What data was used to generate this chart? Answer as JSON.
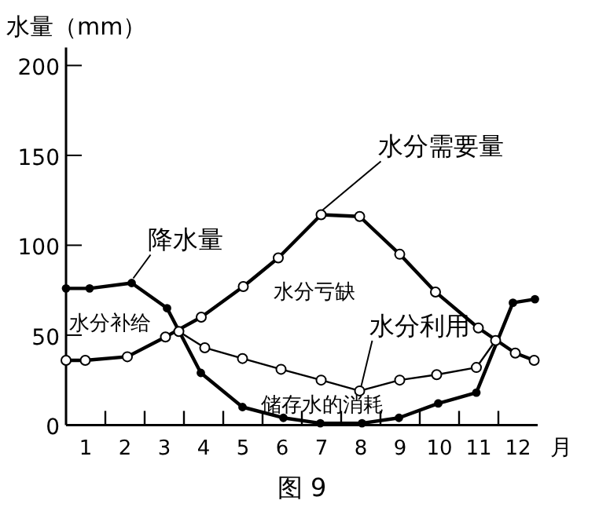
{
  "chart_data": {
    "type": "line",
    "ylabel": "水量（mm）",
    "xlabel": "月",
    "xlim": [
      0.5,
      12.5
    ],
    "ylim": [
      0,
      210
    ],
    "yticks": [
      0,
      50,
      100,
      150,
      200
    ],
    "xticks": [
      1,
      {
        "value": 1.5,
        "label": null
      },
      2,
      {
        "value": 2.5,
        "label": null
      },
      3,
      {
        "value": 3.5,
        "label": null
      },
      4,
      {
        "value": 4.5,
        "label": null
      },
      5,
      {
        "value": 5.5,
        "label": null
      },
      6,
      {
        "value": 6.5,
        "label": null
      },
      7,
      {
        "value": 7.5,
        "label": null
      },
      8,
      {
        "value": 8.5,
        "label": null
      },
      9,
      {
        "value": 9.5,
        "label": null
      },
      10,
      {
        "value": 10.5,
        "label": null
      },
      11,
      {
        "value": 11.5,
        "label": null
      },
      12
    ],
    "marker": "circle",
    "line_style": "solid",
    "series": [
      {
        "name": "降水量",
        "color": "#000000",
        "x": [
          0.5,
          1.1,
          2.17,
          3.07,
          3.93,
          4.99,
          6.03,
          6.97,
          8.03,
          8.97,
          9.97,
          10.94,
          11.87,
          12.43
        ],
        "values": [
          76,
          76,
          79,
          65,
          29,
          10,
          4,
          1,
          1,
          4,
          12,
          18,
          68,
          70
        ]
      },
      {
        "name": "水分需要量",
        "color": "#000000",
        "x": [
          0.5,
          0.99,
          2.06,
          3.03,
          3.94,
          5.01,
          5.9,
          6.99,
          7.97,
          8.99,
          9.9,
          10.99,
          11.93,
          12.41
        ],
        "values": [
          36,
          36,
          38,
          49,
          60,
          77,
          93,
          117,
          116,
          95,
          74,
          54,
          40,
          36
        ]
      },
      {
        "name": "水分利用",
        "color": "#000000",
        "x": [
          3.37,
          4.03,
          4.99,
          5.97,
          6.99,
          7.97,
          8.99,
          9.93,
          10.94,
          11.43
        ],
        "values": [
          52,
          43,
          37,
          31,
          25,
          19,
          25,
          28,
          32,
          47
        ]
      }
    ],
    "annotations": [
      "水分补给",
      "水分亏缺",
      "储存水的消耗",
      "图 9"
    ]
  }
}
